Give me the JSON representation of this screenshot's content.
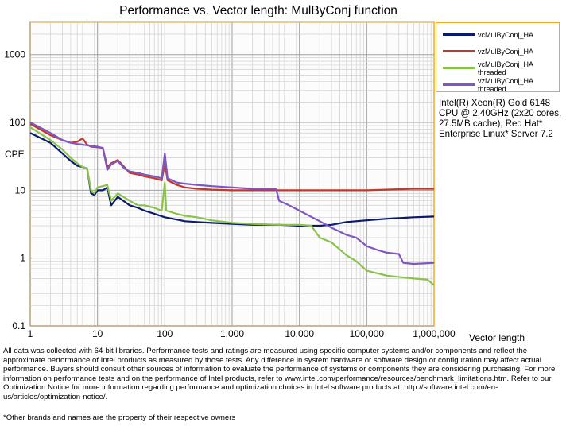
{
  "chart_data": {
    "type": "line",
    "title": "Performance vs. Vector length: MulByConj function",
    "xlabel": "Vector length",
    "ylabel": "CPE",
    "xscale": "log",
    "yscale": "log",
    "xlim": [
      1,
      1000000
    ],
    "ylim": [
      0.1,
      3000
    ],
    "x_tick_labels": [
      "1",
      "10",
      "100",
      "1,000",
      "10,000",
      "100,000",
      "1,000,000"
    ],
    "y_tick_labels": [
      "0.1",
      "1",
      "10",
      "100",
      "1000"
    ],
    "grid": true,
    "legend_position": "top-right",
    "series": [
      {
        "name": "vcMulByConj_HA",
        "color": "#0a1a6e",
        "points": [
          [
            1,
            70
          ],
          [
            2,
            50
          ],
          [
            3,
            35
          ],
          [
            4,
            27
          ],
          [
            5,
            23
          ],
          [
            6,
            22
          ],
          [
            7,
            21
          ],
          [
            8,
            9
          ],
          [
            9,
            8.5
          ],
          [
            10,
            10
          ],
          [
            12,
            10
          ],
          [
            14,
            11
          ],
          [
            16,
            6
          ],
          [
            20,
            8
          ],
          [
            30,
            6
          ],
          [
            40,
            5.5
          ],
          [
            50,
            5
          ],
          [
            70,
            4.5
          ],
          [
            100,
            4
          ],
          [
            150,
            3.7
          ],
          [
            200,
            3.5
          ],
          [
            300,
            3.4
          ],
          [
            500,
            3.3
          ],
          [
            1000,
            3.2
          ],
          [
            2000,
            3.1
          ],
          [
            5000,
            3.1
          ],
          [
            10000,
            3.0
          ],
          [
            20000,
            3.0
          ],
          [
            30000,
            3.1
          ],
          [
            50000,
            3.4
          ],
          [
            100000,
            3.6
          ],
          [
            200000,
            3.8
          ],
          [
            500000,
            4.0
          ],
          [
            1000000,
            4.1
          ]
        ]
      },
      {
        "name": "vzMulByConj_HA",
        "color": "#c0392b",
        "points": [
          [
            1,
            95
          ],
          [
            2,
            65
          ],
          [
            3,
            55
          ],
          [
            4,
            50
          ],
          [
            5,
            52
          ],
          [
            6,
            58
          ],
          [
            7,
            47
          ],
          [
            8,
            44
          ],
          [
            10,
            43
          ],
          [
            12,
            42
          ],
          [
            14,
            22
          ],
          [
            16,
            25
          ],
          [
            20,
            28
          ],
          [
            25,
            22
          ],
          [
            30,
            18
          ],
          [
            40,
            17
          ],
          [
            50,
            16
          ],
          [
            70,
            15
          ],
          [
            90,
            14
          ],
          [
            100,
            25
          ],
          [
            110,
            14
          ],
          [
            150,
            12
          ],
          [
            200,
            11
          ],
          [
            300,
            10.5
          ],
          [
            500,
            10.2
          ],
          [
            1000,
            10
          ],
          [
            5000,
            10
          ],
          [
            10000,
            10
          ],
          [
            50000,
            10
          ],
          [
            100000,
            10
          ],
          [
            500000,
            10.5
          ],
          [
            1000000,
            10.5
          ]
        ]
      },
      {
        "name": "vcMulByConj_HA threaded",
        "color": "#8bc34a",
        "points": [
          [
            1,
            85
          ],
          [
            2,
            55
          ],
          [
            3,
            40
          ],
          [
            4,
            30
          ],
          [
            5,
            25
          ],
          [
            6,
            22
          ],
          [
            7,
            21
          ],
          [
            8,
            10
          ],
          [
            9,
            9
          ],
          [
            10,
            11
          ],
          [
            12,
            11.5
          ],
          [
            14,
            12
          ],
          [
            16,
            7
          ],
          [
            20,
            9
          ],
          [
            30,
            7
          ],
          [
            40,
            6
          ],
          [
            50,
            6
          ],
          [
            70,
            5.5
          ],
          [
            90,
            5
          ],
          [
            100,
            13
          ],
          [
            105,
            5
          ],
          [
            150,
            4.5
          ],
          [
            200,
            4.2
          ],
          [
            300,
            4
          ],
          [
            500,
            3.6
          ],
          [
            1000,
            3.3
          ],
          [
            2000,
            3.2
          ],
          [
            5000,
            3.1
          ],
          [
            10000,
            3.1
          ],
          [
            15000,
            3.0
          ],
          [
            20000,
            2.0
          ],
          [
            30000,
            1.7
          ],
          [
            50000,
            1.1
          ],
          [
            70000,
            0.9
          ],
          [
            100000,
            0.65
          ],
          [
            200000,
            0.55
          ],
          [
            500000,
            0.5
          ],
          [
            800000,
            0.48
          ],
          [
            1000000,
            0.4
          ]
        ]
      },
      {
        "name": "vzMulByConj_HA threaded",
        "color": "#7e57c2",
        "points": [
          [
            1,
            100
          ],
          [
            2,
            70
          ],
          [
            3,
            55
          ],
          [
            4,
            50
          ],
          [
            5,
            48
          ],
          [
            6,
            47
          ],
          [
            7,
            46
          ],
          [
            8,
            45
          ],
          [
            10,
            44
          ],
          [
            12,
            42
          ],
          [
            14,
            20
          ],
          [
            16,
            24
          ],
          [
            20,
            27
          ],
          [
            25,
            21
          ],
          [
            30,
            19
          ],
          [
            40,
            18
          ],
          [
            50,
            17
          ],
          [
            70,
            16
          ],
          [
            90,
            15
          ],
          [
            100,
            35
          ],
          [
            110,
            15
          ],
          [
            150,
            13
          ],
          [
            200,
            12.5
          ],
          [
            300,
            12
          ],
          [
            500,
            11.5
          ],
          [
            1000,
            11
          ],
          [
            2000,
            10.5
          ],
          [
            4500,
            10.5
          ],
          [
            5000,
            7
          ],
          [
            7000,
            6
          ],
          [
            10000,
            5
          ],
          [
            20000,
            3.5
          ],
          [
            30000,
            2.8
          ],
          [
            50000,
            2.2
          ],
          [
            70000,
            2.0
          ],
          [
            100000,
            1.5
          ],
          [
            150000,
            1.3
          ],
          [
            200000,
            1.2
          ],
          [
            300000,
            1.15
          ],
          [
            350000,
            0.85
          ],
          [
            500000,
            0.82
          ],
          [
            1000000,
            0.85
          ]
        ]
      }
    ]
  },
  "system_note": "Intel(R) Xeon(R) Gold 6148 CPU @ 2.40GHz (2x20 cores, 27.5MB cache), Red Hat* Enterprise Linux* Server 7.2",
  "disclaimer": "All data was collected with 64-bit libraries. Performance tests and ratings are measured using specific computer systems and/or components and reflect the approximate performance of Intel products as measured by those tests. Any difference in system hardware or software design or configuration may affect actual performance. Buyers should consult other sources of information to evaluate the performance of systems or components they are considering purchasing. For more information on performance tests and on the performance of Intel products, refer to www.intel.com/performance/resources/benchmark_limitations.htm. Refer to our Optimization Notice for more information regarding performance and optimization choices in Intel software products at: http://software.intel.com/en-us/articles/optimization-notice/.",
  "footnote": "*Other brands and names are the property of their respective owners"
}
